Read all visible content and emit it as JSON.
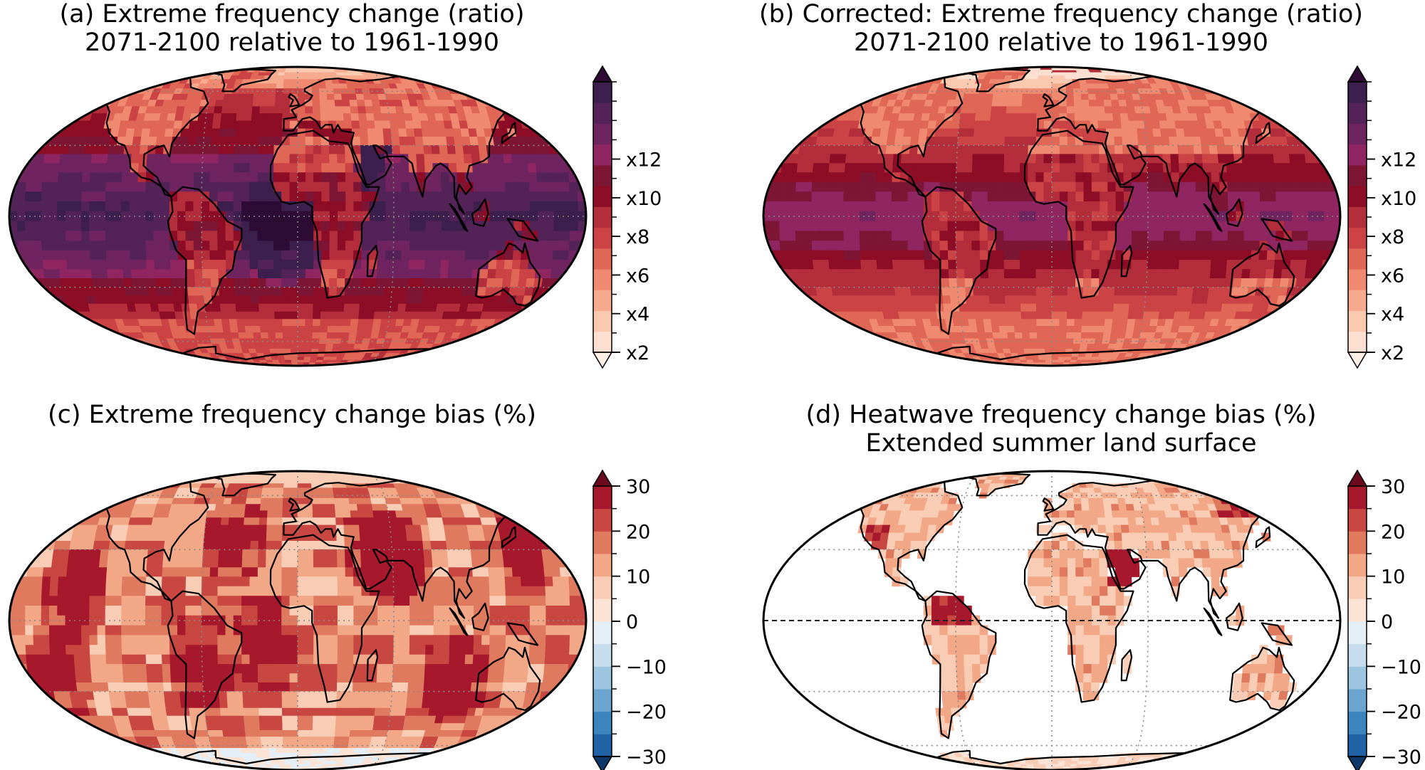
{
  "panels": [
    {
      "id": "a",
      "title_line1": "(a) Extreme frequency change (ratio)",
      "title_line2": "2071-2100 relative to 1961-1990",
      "colorbar": {
        "ticks": [
          "x2",
          "x4",
          "x6",
          "x8",
          "x10",
          "x12"
        ],
        "colors": [
          "#fde0d2",
          "#fbc9b0",
          "#f6ab8f",
          "#ef8a70",
          "#e06655",
          "#cc4345",
          "#b32e3a",
          "#8c0d25",
          "#7d1535",
          "#8f2561",
          "#6f2460",
          "#532358",
          "#3c1f4d"
        ],
        "low_extend": "#fdeee6",
        "high_extend": "#2d0b34"
      },
      "map_style": "ratio_a"
    },
    {
      "id": "b",
      "title_line1": "(b) Corrected: Extreme frequency change (ratio)",
      "title_line2": "2071-2100 relative to 1961-1990",
      "colorbar": {
        "ticks": [
          "x2",
          "x4",
          "x6",
          "x8",
          "x10",
          "x12"
        ],
        "colors": [
          "#fde0d2",
          "#fbc9b0",
          "#f6ab8f",
          "#ef8a70",
          "#e06655",
          "#cc4345",
          "#b32e3a",
          "#8c0d25",
          "#7d1535",
          "#8f2561",
          "#6f2460",
          "#532358",
          "#3c1f4d"
        ],
        "low_extend": "#fdeee6",
        "high_extend": "#2d0b34"
      },
      "map_style": "ratio_b"
    },
    {
      "id": "c",
      "title_line1": "(c) Extreme frequency change bias (%)",
      "title_line2": "",
      "colorbar": {
        "ticks": [
          "−30",
          "−20",
          "−10",
          "0",
          "10",
          "20",
          "30"
        ],
        "colors": [
          "#1f63a6",
          "#3d84bd",
          "#6aa4cf",
          "#9cc6e0",
          "#c6dcec",
          "#e4eef6",
          "#fbe4d6",
          "#f9cdb5",
          "#f2a887",
          "#e07a5f",
          "#c94741",
          "#a8182c"
        ],
        "low_extend": "#10376a",
        "high_extend": "#6b0a1f"
      },
      "map_style": "bias_c"
    },
    {
      "id": "d",
      "title_line1": "(d) Heatwave frequency change bias (%)",
      "title_line2": "Extended summer land surface",
      "colorbar": {
        "ticks": [
          "−30",
          "−20",
          "−10",
          "0",
          "10",
          "20",
          "30"
        ],
        "colors": [
          "#1f63a6",
          "#3d84bd",
          "#6aa4cf",
          "#9cc6e0",
          "#c6dcec",
          "#e4eef6",
          "#fbe4d6",
          "#f9cdb5",
          "#f2a887",
          "#e07a5f",
          "#c94741",
          "#a8182c"
        ],
        "low_extend": "#10376a",
        "high_extend": "#6b0a1f"
      },
      "map_style": "bias_d"
    }
  ]
}
